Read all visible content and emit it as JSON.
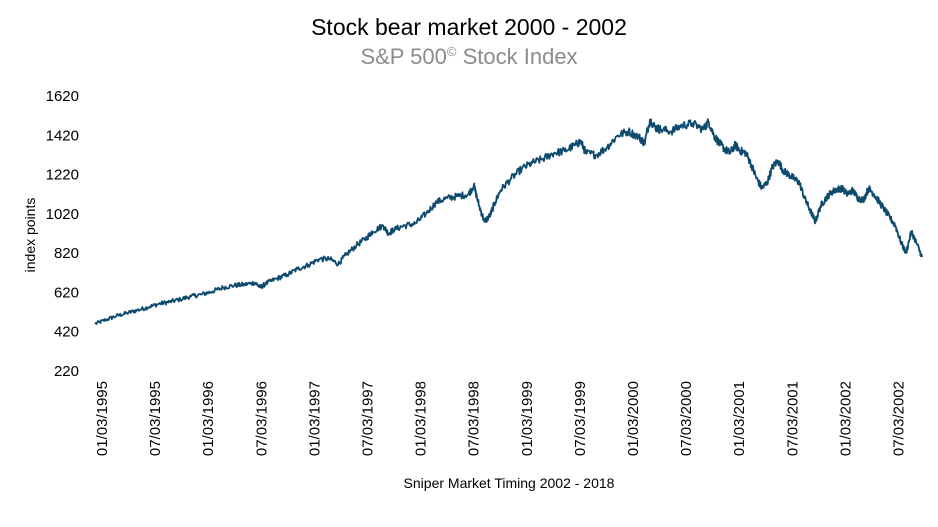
{
  "chart_data": {
    "type": "line",
    "title": "Stock bear market 2000 - 2002",
    "subtitle_main": "S&P 500",
    "subtitle_sup": "©",
    "subtitle_rest": " Stock Index",
    "xlabel": "Sniper Market Timing 2002 - 2018",
    "ylabel": "index points",
    "ylim": [
      220,
      1620
    ],
    "yticks": [
      220,
      420,
      620,
      820,
      1020,
      1220,
      1420,
      1620
    ],
    "xticks": [
      "01/03/1995",
      "07/03/1995",
      "01/03/1996",
      "07/03/1996",
      "01/03/1997",
      "07/03/1997",
      "01/03/1998",
      "07/03/1998",
      "01/03/1999",
      "07/03/1999",
      "01/03/2000",
      "07/03/2000",
      "01/03/2001",
      "07/03/2001",
      "01/03/2002",
      "07/03/2002"
    ],
    "grid": false,
    "series": [
      {
        "color": "#0d4a6e",
        "x": [
          1995.0,
          1995.1,
          1995.2,
          1995.3,
          1995.4,
          1995.5,
          1995.6,
          1995.7,
          1995.8,
          1995.9,
          1996.0,
          1996.1,
          1996.2,
          1996.3,
          1996.4,
          1996.5,
          1996.55,
          1996.6,
          1996.7,
          1996.8,
          1996.9,
          1997.0,
          1997.1,
          1997.2,
          1997.28,
          1997.35,
          1997.45,
          1997.55,
          1997.6,
          1997.7,
          1997.75,
          1997.8,
          1997.9,
          1998.0,
          1998.1,
          1998.2,
          1998.3,
          1998.4,
          1998.5,
          1998.55,
          1998.6,
          1998.65,
          1998.7,
          1998.75,
          1998.8,
          1998.9,
          1999.0,
          1999.1,
          1999.2,
          1999.3,
          1999.4,
          1999.5,
          1999.55,
          1999.6,
          1999.7,
          1999.8,
          1999.9,
          2000.0,
          2000.1,
          2000.15,
          2000.2,
          2000.25,
          2000.3,
          2000.4,
          2000.5,
          2000.6,
          2000.7,
          2000.75,
          2000.8,
          2000.85,
          2000.9,
          2000.95,
          2001.0,
          2001.05,
          2001.1,
          2001.15,
          2001.2,
          2001.25,
          2001.3,
          2001.35,
          2001.4,
          2001.45,
          2001.5,
          2001.55,
          2001.6,
          2001.65,
          2001.7,
          2001.75,
          2001.8,
          2001.85,
          2001.9,
          2001.95,
          2002.0,
          2002.05,
          2002.1,
          2002.15,
          2002.2,
          2002.25,
          2002.3,
          2002.35,
          2002.4,
          2002.45,
          2002.5,
          2002.55,
          2002.6,
          2002.65,
          2002.7,
          2002.75
        ],
        "y": [
          460,
          480,
          500,
          515,
          530,
          545,
          562,
          572,
          585,
          600,
          610,
          625,
          645,
          655,
          660,
          670,
          645,
          665,
          690,
          710,
          740,
          760,
          790,
          790,
          765,
          810,
          860,
          900,
          930,
          960,
          920,
          940,
          960,
          970,
          1020,
          1080,
          1100,
          1110,
          1120,
          1165,
          1060,
          980,
          1010,
          1080,
          1140,
          1200,
          1250,
          1280,
          1300,
          1330,
          1340,
          1370,
          1390,
          1330,
          1320,
          1360,
          1420,
          1440,
          1410,
          1380,
          1500,
          1460,
          1450,
          1440,
          1470,
          1480,
          1450,
          1490,
          1420,
          1380,
          1350,
          1330,
          1370,
          1340,
          1330,
          1270,
          1200,
          1150,
          1180,
          1260,
          1290,
          1240,
          1220,
          1200,
          1180,
          1100,
          1040,
          980,
          1060,
          1100,
          1130,
          1145,
          1150,
          1120,
          1140,
          1100,
          1090,
          1150,
          1120,
          1080,
          1040,
          1000,
          960,
          880,
          820,
          930,
          870,
          800
        ]
      }
    ]
  }
}
